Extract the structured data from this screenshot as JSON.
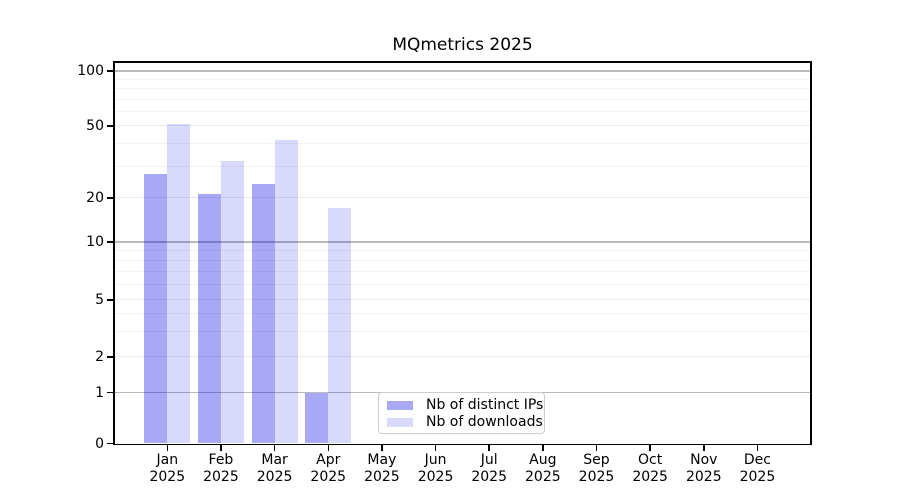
{
  "chart_data": {
    "type": "bar",
    "title": "MQmetrics 2025",
    "categories": [
      "Jan 2025",
      "Feb 2025",
      "Mar 2025",
      "Apr 2025",
      "May 2025",
      "Jun 2025",
      "Jul 2025",
      "Aug 2025",
      "Sep 2025",
      "Oct 2025",
      "Nov 2025",
      "Dec 2025"
    ],
    "series": [
      {
        "name": "Nb of distinct IPs",
        "color": "#0000e6",
        "alpha": 0.34,
        "rendered_hex": "#a8a8f7",
        "values": [
          27,
          21,
          24,
          1,
          0,
          0,
          0,
          0,
          0,
          0,
          0,
          0
        ]
      },
      {
        "name": "Nb of downloads",
        "color": "#0000e6",
        "alpha": 0.15,
        "rendered_hex": "#d9d9fb",
        "values": [
          51,
          32,
          42,
          17,
          0,
          0,
          0,
          0,
          0,
          0,
          0,
          0
        ]
      }
    ],
    "xlabel": "",
    "ylabel": "",
    "yscale": "symlog",
    "yticks": [
      0,
      1,
      2,
      5,
      10,
      20,
      50,
      100
    ],
    "ylim": [
      0,
      110
    ],
    "grid": true,
    "grid_colors": {
      "major": "#b9b9b9",
      "minor": "#f2f2f2"
    },
    "legend_position": "lower center"
  }
}
